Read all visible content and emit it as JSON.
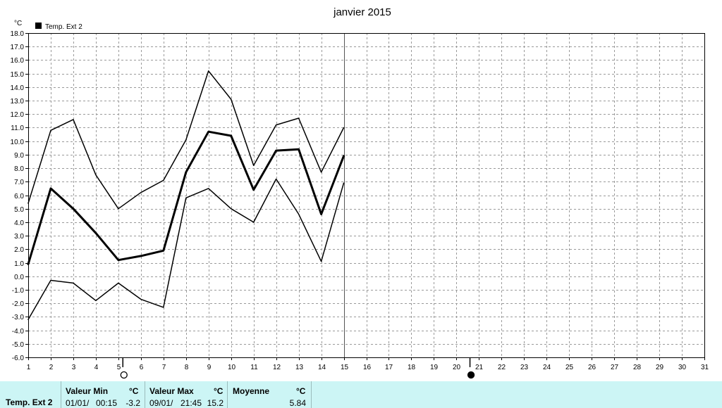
{
  "chart_data": {
    "type": "line",
    "title": "janvier 2015",
    "ylabel": "°C",
    "legend": {
      "label": "Temp. Ext 2",
      "placement": "top-left",
      "color": "#000000"
    },
    "ylim": [
      -6.0,
      18.0
    ],
    "ytick_step": 1.0,
    "yticks": [
      "-6.0",
      "-5.0",
      "-4.0",
      "-3.0",
      "-2.0",
      "-1.0",
      "0.0",
      "1.0",
      "2.0",
      "3.0",
      "4.0",
      "5.0",
      "6.0",
      "7.0",
      "8.0",
      "9.0",
      "10.0",
      "11.0",
      "12.0",
      "13.0",
      "14.0",
      "15.0",
      "16.0",
      "17.0",
      "18.0"
    ],
    "xlim": [
      1,
      31
    ],
    "xticks": [
      "1",
      "2",
      "3",
      "4",
      "5",
      "6",
      "7",
      "8",
      "9",
      "10",
      "11",
      "12",
      "13",
      "14",
      "15",
      "16",
      "17",
      "18",
      "19",
      "20",
      "21",
      "22",
      "23",
      "24",
      "25",
      "26",
      "27",
      "28",
      "29",
      "30",
      "31"
    ],
    "grid": true,
    "series": [
      {
        "role": "max",
        "stroke_width": 1.5,
        "x": [
          1,
          2,
          3,
          4,
          5,
          6,
          7,
          8,
          9,
          10,
          11,
          12,
          13,
          14,
          15
        ],
        "values": [
          5.4,
          10.8,
          11.6,
          7.5,
          5.0,
          6.2,
          7.1,
          10.1,
          15.2,
          13.1,
          8.2,
          11.2,
          11.7,
          7.7,
          11.0
        ]
      },
      {
        "role": "mean",
        "stroke_width": 3,
        "x": [
          1,
          2,
          3,
          4,
          5,
          6,
          7,
          8,
          9,
          10,
          11,
          12,
          13,
          14,
          15
        ],
        "values": [
          0.9,
          6.5,
          5.0,
          3.2,
          1.2,
          1.5,
          1.9,
          7.7,
          10.7,
          10.4,
          6.4,
          9.3,
          9.4,
          4.6,
          8.9
        ]
      },
      {
        "role": "min",
        "stroke_width": 1.5,
        "x": [
          1,
          2,
          3,
          4,
          5,
          6,
          7,
          8,
          9,
          10,
          11,
          12,
          13,
          14,
          15
        ],
        "values": [
          -3.2,
          -0.3,
          -0.5,
          -1.8,
          -0.5,
          -1.7,
          -2.3,
          5.8,
          6.5,
          5.0,
          4.0,
          7.2,
          4.6,
          1.1,
          6.9
        ]
      }
    ],
    "current_day_marker": 15,
    "moon_phases": [
      {
        "day": 5.2,
        "phase": "full-moon-icon"
      },
      {
        "day": 20.6,
        "phase": "new-moon-icon"
      }
    ]
  },
  "footer": {
    "series_label": "Temp. Ext 2",
    "min": {
      "header": "Valeur Min",
      "unit": "°C",
      "date": "01/01/",
      "time": "00:15",
      "value": "-3.2"
    },
    "max": {
      "header": "Valeur Max",
      "unit": "°C",
      "date": "09/01/",
      "time": "21:45",
      "value": "15.2"
    },
    "mean": {
      "header": "Moyenne",
      "unit": "°C",
      "value": "5.84"
    }
  }
}
